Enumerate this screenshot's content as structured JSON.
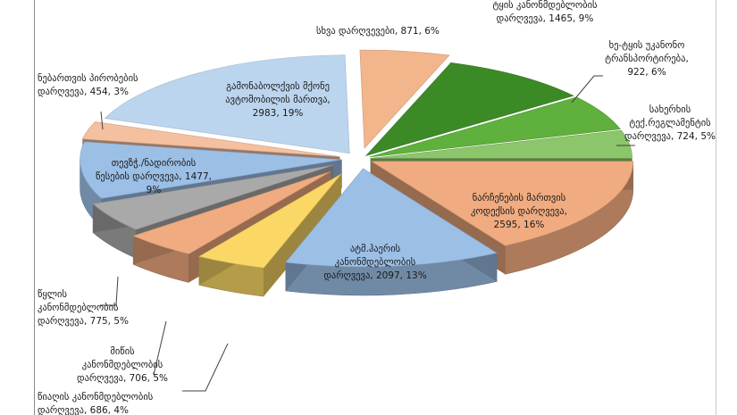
{
  "chart_data": {
    "type": "pie",
    "title": "",
    "slices": [
      {
        "label_lines": [
          "სხვა დარღვევები, 871, 6%"
        ],
        "value": 871,
        "percent": 6,
        "color": "#f2b58c"
      },
      {
        "label_lines": [
          "ტყის კანონმდებლობის",
          "დარღვევა, 1465, 9%"
        ],
        "value": 1465,
        "percent": 9,
        "color": "#3c8a26"
      },
      {
        "label_lines": [
          "ხე-ტყის უკანონო",
          "ტრანსპორტირება,",
          "922, 6%"
        ],
        "value": 922,
        "percent": 6,
        "color": "#5fb03c"
      },
      {
        "label_lines": [
          "სახერხის",
          "ტექ.რეგლამენტის",
          "დარღვევა, 724, 5%"
        ],
        "value": 724,
        "percent": 5,
        "color": "#8cc66a"
      },
      {
        "label_lines": [
          "ნარჩენების მართვის",
          "კოდექსის დარღვევა,",
          "2595, 16%"
        ],
        "value": 2595,
        "percent": 16,
        "color": "#f0ab80"
      },
      {
        "label_lines": [
          "ატმ.ჰაერის",
          "კანონმდებლობის",
          "დარღვევა, 2097, 13%"
        ],
        "value": 2097,
        "percent": 13,
        "color": "#9cbfe6"
      },
      {
        "label_lines": [
          "წიაღის კანონმდებლობის",
          "დარღვევა, 686, 4%"
        ],
        "value": 686,
        "percent": 4,
        "color": "#fbd865"
      },
      {
        "label_lines": [
          "მიწის",
          "კანონმდებლობის",
          "დარღვევა, 706, 5%"
        ],
        "value": 706,
        "percent": 5,
        "color": "#f0ab80"
      },
      {
        "label_lines": [
          "წყლის",
          "კანონმდებლობის",
          "დარღვევა, 775, 5%"
        ],
        "value": 775,
        "percent": 5,
        "color": "#a9a9a9"
      },
      {
        "label_lines": [
          "თევზჭ./ნადირობის",
          "წესების დარღვევა, 1477,",
          "9%"
        ],
        "value": 1477,
        "percent": 9,
        "color": "#9cbfe6"
      },
      {
        "label_lines": [
          "ნებართვის პირობების",
          "დარღვევა, 454, 3%"
        ],
        "value": 454,
        "percent": 3,
        "color": "#f4c0a0"
      },
      {
        "label_lines": [
          "გამონაბოლქვის მქონე",
          "ავტომობილის მართვა,",
          "2983, 19%"
        ],
        "value": 2983,
        "percent": 19,
        "color": "#bcd5ee"
      }
    ],
    "legend": "none",
    "grid": false
  }
}
